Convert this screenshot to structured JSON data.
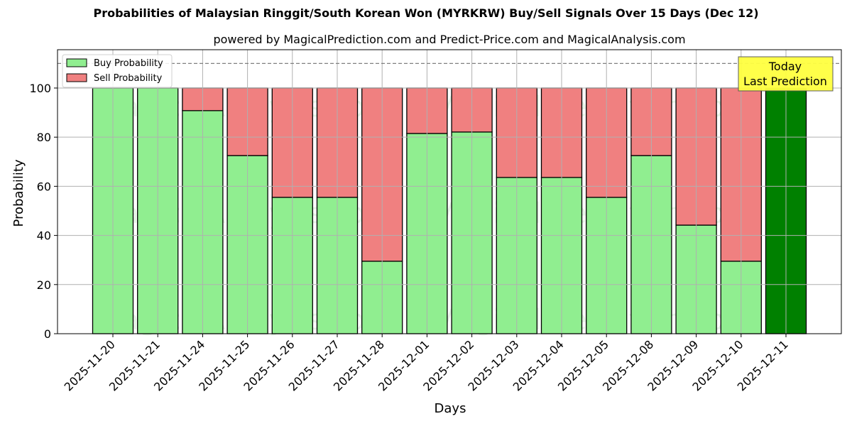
{
  "chart_data": {
    "type": "bar",
    "stacked": true,
    "title": "Probabilities of Malaysian Ringgit/South Korean Won (MYRKRW) Buy/Sell Signals Over 15 Days (Dec 12)",
    "subtitle": "powered by MagicalPrediction.com and Predict-Price.com and MagicalAnalysis.com",
    "xlabel": "Days",
    "ylabel": "Probability",
    "ylim": [
      0,
      115.6
    ],
    "yticks": [
      0,
      20,
      40,
      60,
      80,
      100
    ],
    "grid": true,
    "legend_position": "upper left",
    "reference_line": {
      "y": 110,
      "style": "dashed",
      "color": "#808080"
    },
    "categories": [
      "2025-11-20",
      "2025-11-21",
      "2025-11-24",
      "2025-11-25",
      "2025-11-26",
      "2025-11-27",
      "2025-11-28",
      "2025-12-01",
      "2025-12-02",
      "2025-12-03",
      "2025-12-04",
      "2025-12-05",
      "2025-12-08",
      "2025-12-09",
      "2025-12-10",
      "2025-12-11"
    ],
    "series": [
      {
        "name": "Buy Probability",
        "color": "#90ee90",
        "values": [
          100,
          100,
          90.8,
          72.5,
          55.5,
          55.5,
          29.5,
          81.5,
          82.1,
          63.6,
          63.6,
          55.5,
          72.5,
          44.2,
          29.5,
          100
        ]
      },
      {
        "name": "Sell Probability",
        "color": "#f08080",
        "values": [
          0,
          0,
          9.2,
          27.5,
          44.5,
          44.5,
          70.5,
          18.5,
          17.9,
          36.4,
          36.4,
          44.5,
          27.5,
          55.8,
          70.5,
          0
        ]
      }
    ],
    "highlight": {
      "index": 15,
      "color": "#008000"
    },
    "annotation": {
      "lines": [
        "Today",
        "Last Prediction"
      ],
      "background": "#ffff40"
    },
    "watermarks": [
      "MagicalAnalysis.com",
      "MagicalPrediction.com"
    ]
  }
}
